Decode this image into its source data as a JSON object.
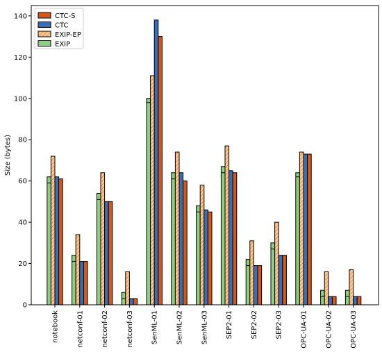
{
  "chart_data": {
    "type": "bar",
    "ylabel": "Size (bytes)",
    "xlabel": "",
    "ylim": [
      0,
      145
    ],
    "yticks": [
      0,
      20,
      40,
      60,
      80,
      100,
      120,
      140
    ],
    "categories": [
      "notebook",
      "netconf-01",
      "netconf-02",
      "netconf-03",
      "SenML-01",
      "SenML-02",
      "SenML-03",
      "SEP2-01",
      "SEP2-02",
      "SEP2-03",
      "OPC-UA-01",
      "OPC-UA-02",
      "OPC-UA-03"
    ],
    "series": [
      {
        "name": "EXIP",
        "color": "#8ccf83",
        "values": [
          62,
          24,
          54,
          6,
          100,
          64,
          48,
          67,
          22,
          30,
          64,
          7,
          7
        ],
        "inner_mark": [
          59,
          21,
          51,
          3,
          98,
          61,
          45,
          64,
          19,
          27,
          62,
          4,
          4
        ]
      },
      {
        "name": "EXIP-EP",
        "color": "#fdc48c",
        "hatched": true,
        "values": [
          72,
          34,
          64,
          16,
          111,
          74,
          58,
          77,
          31,
          40,
          74,
          16,
          17
        ]
      },
      {
        "name": "CTC",
        "color": "#3a6eb5",
        "values": [
          62,
          21,
          50,
          3,
          138,
          64,
          46,
          65,
          19,
          24,
          73,
          4,
          4
        ]
      },
      {
        "name": "CTC-S",
        "color": "#d2581c",
        "values": [
          61,
          21,
          50,
          3,
          130,
          60,
          45,
          64,
          19,
          24,
          73,
          4,
          4
        ]
      }
    ],
    "legend": {
      "position": "top-left",
      "order": [
        "CTC-S",
        "CTC",
        "EXIP-EP",
        "EXIP"
      ]
    },
    "grid": false
  }
}
